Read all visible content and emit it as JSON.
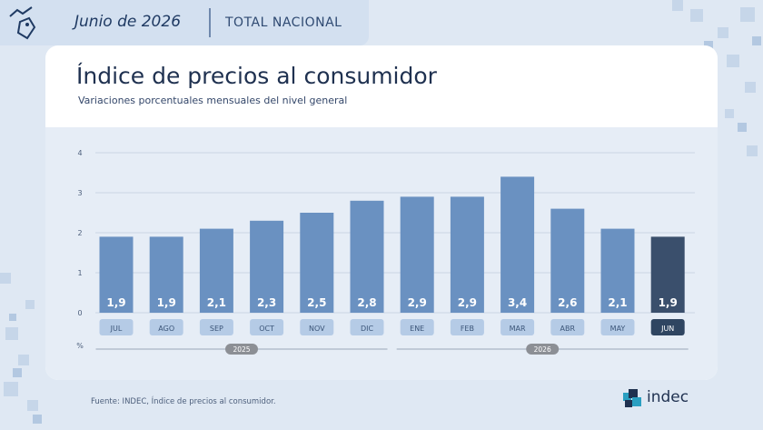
{
  "header": {
    "period": "Junio de 2026",
    "scope": "TOTAL NACIONAL",
    "icon": "price-tag-trend-icon"
  },
  "card": {
    "title": "Índice de precios al consumidor",
    "subtitle": "Variaciones porcentuales mensuales del nivel general"
  },
  "chart_data": {
    "type": "bar",
    "title": "Índice de precios al consumidor",
    "subtitle": "Variaciones porcentuales mensuales del nivel general",
    "ylabel": "%",
    "ylim": [
      0,
      4
    ],
    "yticks": [
      "0",
      "1",
      "2",
      "3",
      "4"
    ],
    "grid": true,
    "categories": [
      "JUL",
      "AGO",
      "SEP",
      "OCT",
      "NOV",
      "DIC",
      "ENE",
      "FEB",
      "MAR",
      "ABR",
      "MAY",
      "JUN"
    ],
    "values": [
      1.9,
      1.9,
      2.1,
      2.3,
      2.5,
      2.8,
      2.9,
      2.9,
      3.4,
      2.6,
      2.1,
      1.9
    ],
    "labels": [
      "1,9",
      "1,9",
      "2,1",
      "2,3",
      "2,5",
      "2,8",
      "2,9",
      "2,9",
      "3,4",
      "2,6",
      "2,1",
      "1,9"
    ],
    "highlight_index": 11,
    "year_groups": [
      {
        "label": "2025",
        "start": 0,
        "end": 5
      },
      {
        "label": "2026",
        "start": 6,
        "end": 11
      }
    ],
    "colors": {
      "bar": "#6a91c1",
      "bar_highlight": "#3a4f6c",
      "pill": "#b5cbe6",
      "pill_highlight": "#2f4561",
      "year_pill": "#8c8f95"
    }
  },
  "footer": {
    "source": "Fuente: INDEC, Índice de precios al consumidor.",
    "logo_text": "indec",
    "logo_icon": "indec-logo-icon"
  }
}
